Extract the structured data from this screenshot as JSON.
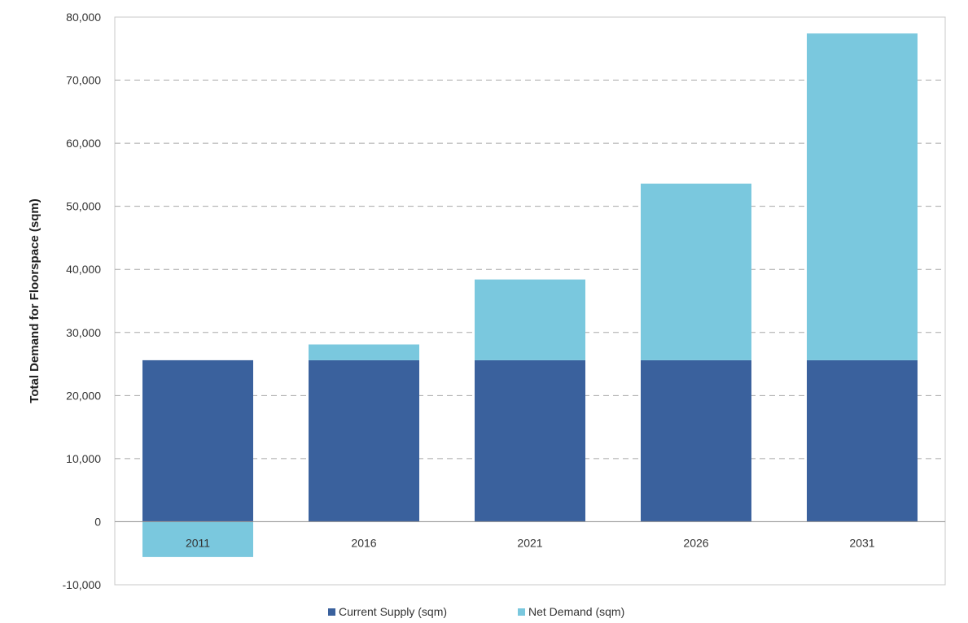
{
  "chart_data": {
    "type": "bar",
    "stacked": true,
    "categories": [
      "2011",
      "2016",
      "2021",
      "2026",
      "2031"
    ],
    "series": [
      {
        "name": "Current Supply (sqm)",
        "color": "#3a619d",
        "values": [
          25600,
          25600,
          25600,
          25600,
          25600
        ]
      },
      {
        "name": "Net Demand (sqm)",
        "color": "#7ac8de",
        "values": [
          -5600,
          2500,
          12800,
          28000,
          51800
        ]
      }
    ],
    "title": "",
    "xlabel": "",
    "ylabel": "Total Demand for Floorspace (sqm)",
    "ylim": [
      -10000,
      80000
    ],
    "yticks": [
      -10000,
      0,
      10000,
      20000,
      30000,
      40000,
      50000,
      60000,
      70000,
      80000
    ],
    "ytick_labels": [
      "-10,000",
      "0",
      "10,000",
      "20,000",
      "30,000",
      "40,000",
      "50,000",
      "60,000",
      "70,000",
      "80,000"
    ],
    "grid": "horizontal dashed",
    "legend_position": "bottom"
  }
}
